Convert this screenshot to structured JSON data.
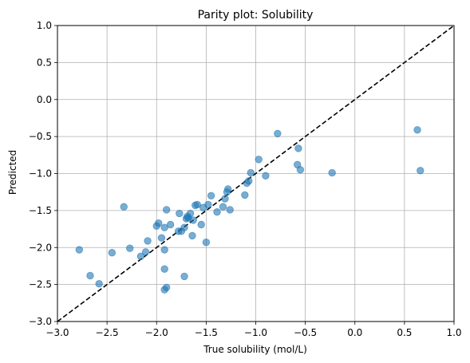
{
  "chart_data": {
    "type": "scatter",
    "title": "Parity plot: Solubility",
    "xlabel": "True solubility (mol/L)",
    "ylabel": "Predicted",
    "xlim": [
      -3.0,
      1.0
    ],
    "ylim": [
      -3.0,
      1.0
    ],
    "xticks": [
      "−3.0",
      "−2.5",
      "−2.0",
      "−1.5",
      "−1.0",
      "−0.5",
      "0.0",
      "0.5",
      "1.0"
    ],
    "yticks": [
      "−3.0",
      "−2.5",
      "−2.0",
      "−1.5",
      "−1.0",
      "−0.5",
      "0.0",
      "0.5",
      "1.0"
    ],
    "grid": true,
    "reference_line": {
      "style": "dashed",
      "color": "#000000",
      "from": [
        -3.0,
        -3.0
      ],
      "to": [
        1.0,
        1.0
      ]
    },
    "marker_color": "#1f77b4",
    "points": [
      {
        "x": -2.78,
        "y": -2.03
      },
      {
        "x": -2.67,
        "y": -2.38
      },
      {
        "x": -2.58,
        "y": -2.49
      },
      {
        "x": -2.45,
        "y": -2.07
      },
      {
        "x": -2.33,
        "y": -1.45
      },
      {
        "x": -2.27,
        "y": -2.01
      },
      {
        "x": -2.16,
        "y": -2.12
      },
      {
        "x": -2.11,
        "y": -2.06
      },
      {
        "x": -2.09,
        "y": -1.91
      },
      {
        "x": -2.0,
        "y": -1.71
      },
      {
        "x": -1.98,
        "y": -1.67
      },
      {
        "x": -1.95,
        "y": -1.87
      },
      {
        "x": -1.92,
        "y": -1.73
      },
      {
        "x": -1.92,
        "y": -2.03
      },
      {
        "x": -1.92,
        "y": -2.29
      },
      {
        "x": -1.92,
        "y": -2.57
      },
      {
        "x": -1.9,
        "y": -2.54
      },
      {
        "x": -1.9,
        "y": -1.49
      },
      {
        "x": -1.86,
        "y": -1.69
      },
      {
        "x": -1.78,
        "y": -1.78
      },
      {
        "x": -1.77,
        "y": -1.54
      },
      {
        "x": -1.75,
        "y": -1.78
      },
      {
        "x": -1.72,
        "y": -1.73
      },
      {
        "x": -1.72,
        "y": -2.39
      },
      {
        "x": -1.7,
        "y": -1.61
      },
      {
        "x": -1.69,
        "y": -1.58
      },
      {
        "x": -1.68,
        "y": -1.6
      },
      {
        "x": -1.66,
        "y": -1.54
      },
      {
        "x": -1.64,
        "y": -1.84
      },
      {
        "x": -1.63,
        "y": -1.63
      },
      {
        "x": -1.61,
        "y": -1.43
      },
      {
        "x": -1.59,
        "y": -1.42
      },
      {
        "x": -1.55,
        "y": -1.69
      },
      {
        "x": -1.53,
        "y": -1.46
      },
      {
        "x": -1.5,
        "y": -1.93
      },
      {
        "x": -1.48,
        "y": -1.42
      },
      {
        "x": -1.45,
        "y": -1.3
      },
      {
        "x": -1.39,
        "y": -1.52
      },
      {
        "x": -1.33,
        "y": -1.45
      },
      {
        "x": -1.31,
        "y": -1.34
      },
      {
        "x": -1.29,
        "y": -1.25
      },
      {
        "x": -1.28,
        "y": -1.21
      },
      {
        "x": -1.26,
        "y": -1.49
      },
      {
        "x": -1.11,
        "y": -1.29
      },
      {
        "x": -1.09,
        "y": -1.13
      },
      {
        "x": -1.07,
        "y": -1.1
      },
      {
        "x": -1.05,
        "y": -0.99
      },
      {
        "x": -0.97,
        "y": -0.81
      },
      {
        "x": -0.9,
        "y": -1.03
      },
      {
        "x": -0.78,
        "y": -0.46
      },
      {
        "x": -0.58,
        "y": -0.88
      },
      {
        "x": -0.57,
        "y": -0.66
      },
      {
        "x": -0.55,
        "y": -0.95
      },
      {
        "x": -0.23,
        "y": -0.99
      },
      {
        "x": 0.63,
        "y": -0.41
      },
      {
        "x": 0.66,
        "y": -0.96
      }
    ]
  }
}
